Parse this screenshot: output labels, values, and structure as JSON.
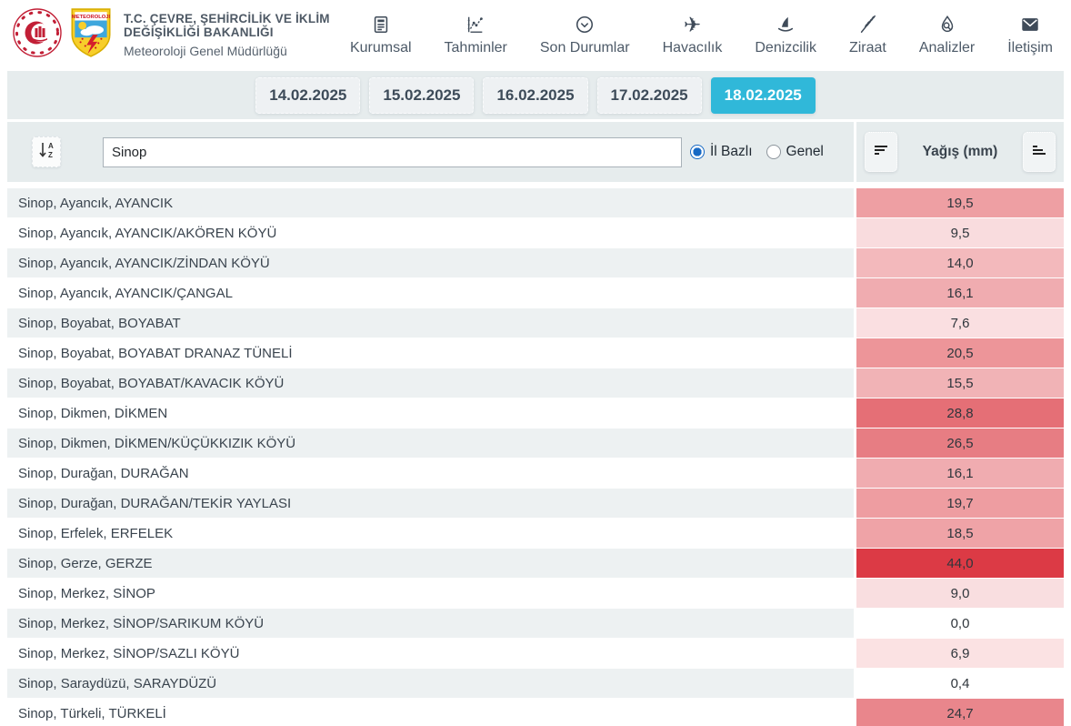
{
  "header": {
    "title": "T.C. ÇEVRE, ŞEHİRCİLİK VE İKLİM DEĞİŞİKLİĞİ BAKANLIĞI",
    "subtitle": "Meteoroloji Genel Müdürlüğü",
    "logo_text": "METEOROLOJI",
    "nav": [
      {
        "label": "Kurumsal",
        "icon": "clipboard-icon"
      },
      {
        "label": "Tahminler",
        "icon": "chart-icon"
      },
      {
        "label": "Son Durumlar",
        "icon": "circle-chevron-down-icon"
      },
      {
        "label": "Havacılık",
        "icon": "plane-icon"
      },
      {
        "label": "Denizcilik",
        "icon": "sailboat-icon"
      },
      {
        "label": "Ziraat",
        "icon": "wheat-icon"
      },
      {
        "label": "Analizler",
        "icon": "droplet-search-icon"
      },
      {
        "label": "İletişim",
        "icon": "envelope-icon"
      }
    ]
  },
  "date_tabs": [
    {
      "label": "14.02.2025",
      "active": false
    },
    {
      "label": "15.02.2025",
      "active": false
    },
    {
      "label": "16.02.2025",
      "active": false
    },
    {
      "label": "17.02.2025",
      "active": false
    },
    {
      "label": "18.02.2025",
      "active": true
    }
  ],
  "filter": {
    "search_value": "Sinop",
    "radios": [
      {
        "label": "İl Bazlı",
        "selected": true
      },
      {
        "label": "Genel",
        "selected": false
      }
    ],
    "column_header": "Yağış (mm)"
  },
  "colors": {
    "accent_active_tab": "#30b8d9",
    "band_background": "#e6eced",
    "stripe_background": "#edf1f2",
    "radio_selected": "#1568c4",
    "value_scale_max": "#dc3a45"
  },
  "table": {
    "rows": [
      {
        "location": "Sinop, Ayancık, AYANCIK",
        "value": "19,5",
        "color": "#ee9fa3"
      },
      {
        "location": "Sinop, Ayancık, AYANCIK/AKÖREN KÖYÜ",
        "value": "9,5",
        "color": "#f9dcde"
      },
      {
        "location": "Sinop, Ayancık, AYANCIK/ZİNDAN KÖYÜ",
        "value": "14,0",
        "color": "#f3b9bc"
      },
      {
        "location": "Sinop, Ayancık, AYANCIK/ÇANGAL",
        "value": "16,1",
        "color": "#f0acb0"
      },
      {
        "location": "Sinop, Boyabat, BOYABAT",
        "value": "7,6",
        "color": "#fadfe1"
      },
      {
        "location": "Sinop, Boyabat, BOYABAT DRANAZ TÜNELİ",
        "value": "20,5",
        "color": "#ed9599"
      },
      {
        "location": "Sinop, Boyabat, BOYABAT/KAVACIK KÖYÜ",
        "value": "15,5",
        "color": "#f1b3b6"
      },
      {
        "location": "Sinop, Dikmen, DİKMEN",
        "value": "28,8",
        "color": "#e56f76"
      },
      {
        "location": "Sinop, Dikmen, DİKMEN/KÜÇÜKKIZIK KÖYÜ",
        "value": "26,5",
        "color": "#e77d83"
      },
      {
        "location": "Sinop, Durağan, DURAĞAN",
        "value": "16,1",
        "color": "#f0acb0"
      },
      {
        "location": "Sinop, Durağan, DURAĞAN/TEKİR YAYLASI",
        "value": "19,7",
        "color": "#ee9da1"
      },
      {
        "location": "Sinop, Erfelek, ERFELEK",
        "value": "18,5",
        "color": "#efa3a7"
      },
      {
        "location": "Sinop, Gerze, GERZE",
        "value": "44,0",
        "color": "#dc3a45"
      },
      {
        "location": "Sinop, Merkez, SİNOP",
        "value": "9,0",
        "color": "#f9dee0"
      },
      {
        "location": "Sinop, Merkez, SİNOP/SARIKUM KÖYÜ",
        "value": "0,0",
        "color": "#ffffff"
      },
      {
        "location": "Sinop, Merkez, SİNOP/SAZLI KÖYÜ",
        "value": "6,9",
        "color": "#fbe2e3"
      },
      {
        "location": "Sinop, Saraydüzü, SARAYDÜZÜ",
        "value": "0,4",
        "color": "#ffffff"
      },
      {
        "location": "Sinop, Türkeli, TÜRKELİ",
        "value": "24,7",
        "color": "#e9868c"
      }
    ]
  }
}
